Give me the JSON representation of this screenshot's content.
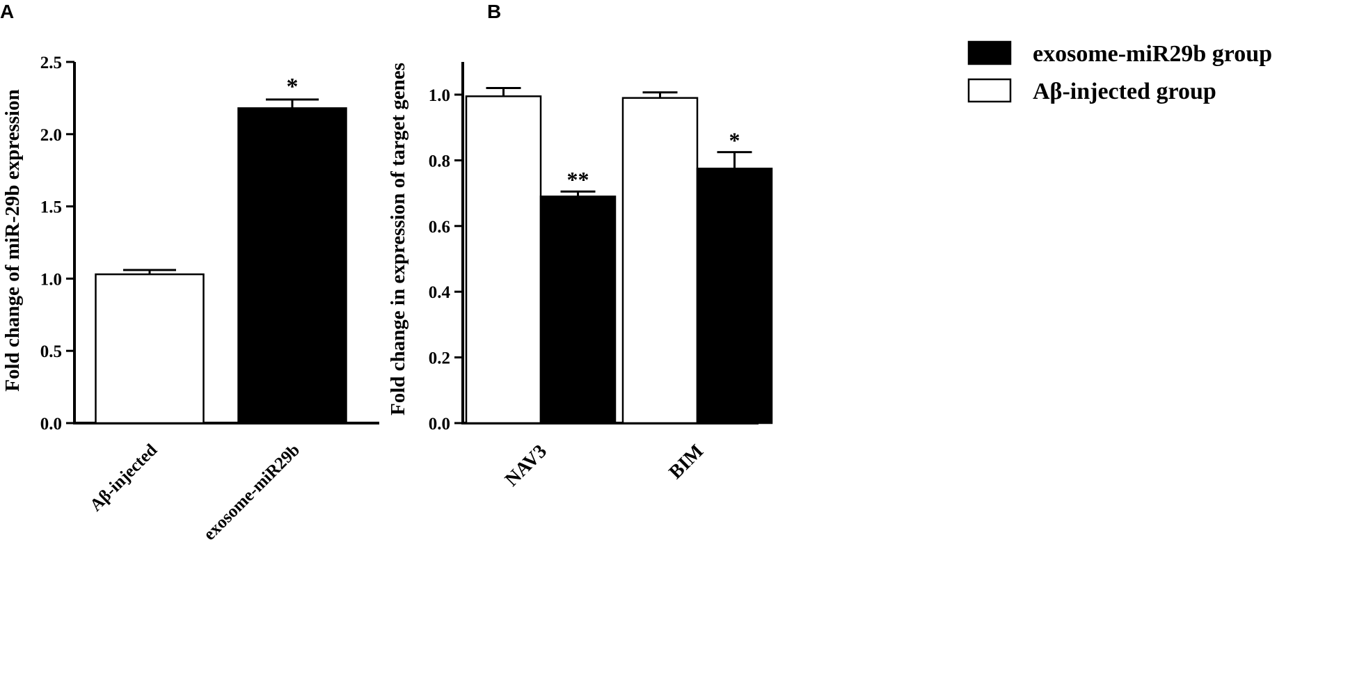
{
  "chart_data": [
    {
      "panel": "A",
      "type": "bar",
      "categories": [
        "Aβ-injected",
        "exosome-miR29b"
      ],
      "values": [
        1.03,
        2.18
      ],
      "errors": [
        0.03,
        0.06
      ],
      "bar_fill": [
        "#ffffff",
        "#000000"
      ],
      "significance": [
        "",
        "*"
      ],
      "ylabel": "Fold change of miR-29b expression",
      "ylim": [
        0,
        2.5
      ],
      "yticks": [
        "0.0",
        "0.5",
        "1.0",
        "1.5",
        "2.0",
        "2.5"
      ],
      "grid": false
    },
    {
      "panel": "B",
      "type": "bar",
      "categories": [
        "NAV3",
        "BIM"
      ],
      "series": [
        {
          "name": "Aβ-injected group",
          "color": "#ffffff",
          "values": [
            0.995,
            0.99
          ],
          "errors": [
            0.025,
            0.017
          ],
          "significance": [
            "",
            ""
          ]
        },
        {
          "name": "exosome-miR29b group",
          "color": "#000000",
          "values": [
            0.69,
            0.775
          ],
          "errors": [
            0.015,
            0.05
          ],
          "significance": [
            "**",
            "*"
          ]
        }
      ],
      "ylabel": "Fold change in expression of target genes",
      "ylim": [
        0,
        1.1
      ],
      "yticks": [
        "0.0",
        "0.2",
        "0.4",
        "0.6",
        "0.8",
        "1.0"
      ],
      "legend_entries": [
        "exosome-miR29b group",
        "Aβ-injected group"
      ],
      "legend_colors": [
        "#000000",
        "#ffffff"
      ],
      "legend_position": "top-right",
      "grid": false
    }
  ]
}
